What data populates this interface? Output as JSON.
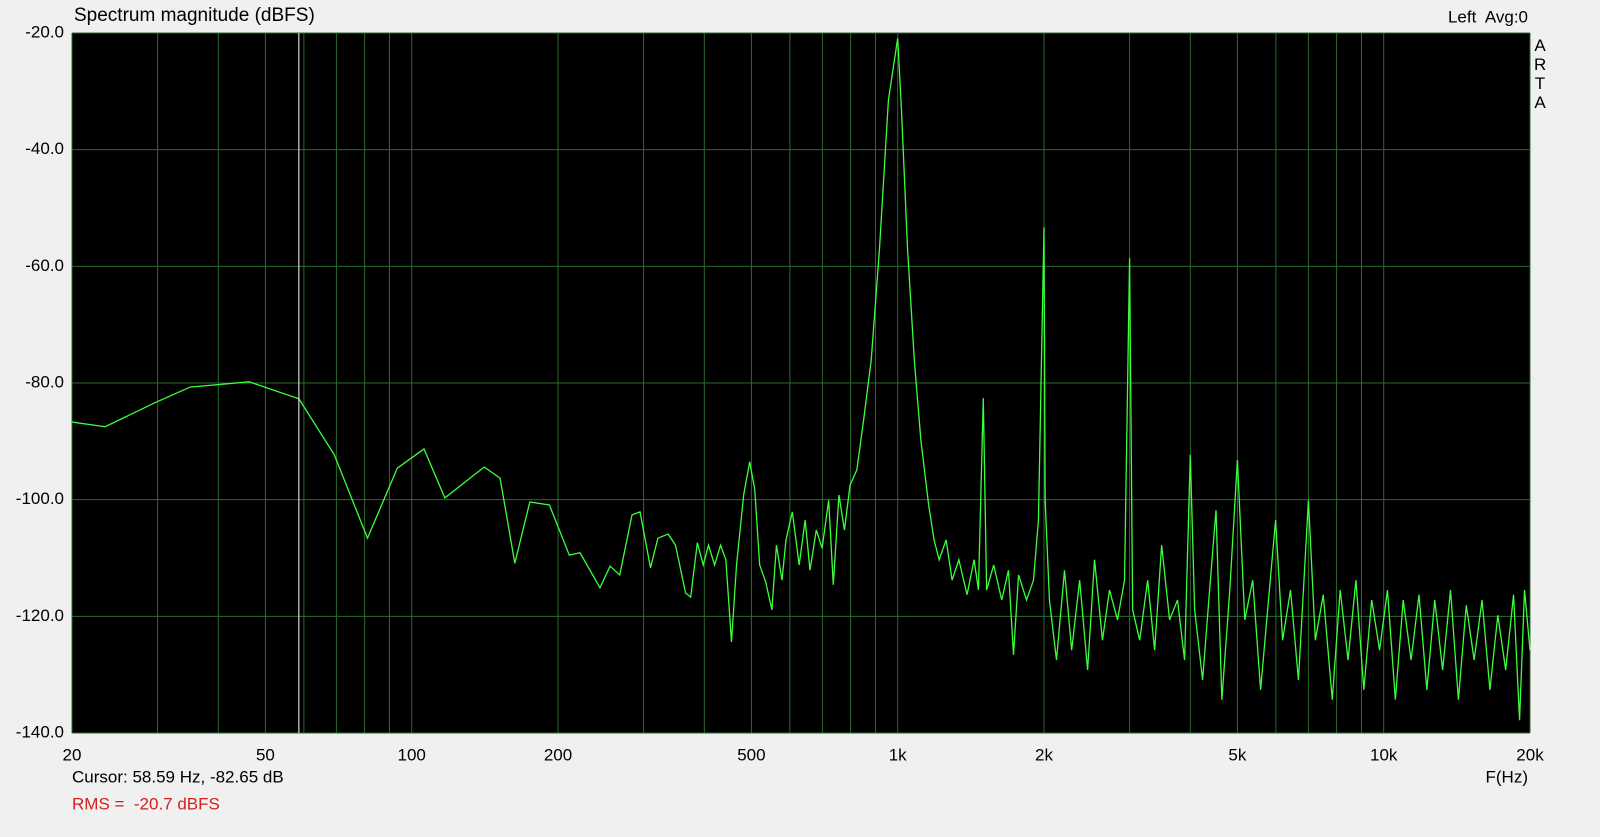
{
  "chart_data": {
    "type": "line",
    "title": "Spectrum magnitude (dBFS)",
    "channel_label": "Left  Avg:0",
    "brand": "ARTA",
    "x_axis_label": "F(Hz)",
    "log_x": true,
    "grid": true,
    "color": "#3cff3c",
    "xlim": [
      20,
      20000
    ],
    "ylim": [
      -140,
      -20
    ],
    "xticks": [
      20,
      50,
      100,
      200,
      500,
      {
        "value": 1000,
        "label": "1k"
      },
      {
        "value": 2000,
        "label": "2k"
      },
      {
        "value": 5000,
        "label": "5k"
      },
      {
        "value": 10000,
        "label": "10k"
      },
      {
        "value": 20000,
        "label": "20k"
      }
    ],
    "minor_xgrid": [
      30,
      40,
      60,
      70,
      80,
      90,
      300,
      400,
      600,
      700,
      800,
      900,
      3000,
      4000,
      6000,
      7000,
      8000,
      9000
    ],
    "yticks": [
      {
        "value": -20,
        "label": "-20.0"
      },
      {
        "value": -40,
        "label": "-40.0"
      },
      {
        "value": -60,
        "label": "-60.0"
      },
      {
        "value": -80,
        "label": "-80.0"
      },
      {
        "value": -100,
        "label": "-100.0"
      },
      {
        "value": -120,
        "label": "-120.0"
      },
      {
        "value": -140,
        "label": "-140.0"
      }
    ],
    "cursor": {
      "x": 58.59,
      "y": -82.65,
      "label": "Cursor: 58.59 Hz, -82.65 dB"
    },
    "rms_label": "RMS =  -20.7 dBFS",
    "x": [
      20,
      23.4,
      29.6,
      35,
      46.3,
      58.6,
      69.3,
      81.1,
      93.4,
      106,
      117,
      141,
      152,
      163,
      175,
      192,
      211,
      222,
      244,
      256,
      268,
      284,
      295,
      310,
      321,
      337,
      349,
      366,
      375,
      387,
      398,
      408,
      420,
      432,
      443,
      455,
      466,
      482,
      496,
      508,
      520,
      535,
      551,
      563,
      578,
      589,
      607,
      627,
      645,
      660,
      680,
      699,
      721,
      737,
      757,
      777,
      798,
      824,
      851,
      882,
      917,
      957,
      1000,
      1018,
      1048,
      1082,
      1116,
      1158,
      1188,
      1217,
      1258,
      1294,
      1336,
      1389,
      1436,
      1466,
      1500,
      1524,
      1576,
      1637,
      1690,
      1731,
      1773,
      1841,
      1903,
      1948,
      2000,
      2011,
      2052,
      2122,
      2204,
      2280,
      2368,
      2459,
      2541,
      2638,
      2728,
      2833,
      2929,
      3000,
      3044,
      3147,
      3268,
      3378,
      3492,
      3626,
      3765,
      3893,
      4000,
      4083,
      4240,
      4383,
      4518,
      4645,
      4823,
      5000,
      5178,
      5376,
      5581,
      5794,
      5992,
      6194,
      6431,
      6677,
      7000,
      7234,
      7510,
      7838,
      8136,
      8446,
      8767,
      9100,
      9447,
      9806,
      10180,
      10567,
      10969,
      11386,
      11820,
      12269,
      12736,
      13221,
      13724,
      14246,
      14788,
      15350,
      15934,
      16540,
      17170,
      17823,
      18501,
      19035,
      19488,
      20000
    ],
    "values": [
      -86.7,
      -87.5,
      -83.4,
      -80.7,
      -79.8,
      -82.7,
      -92.3,
      -106.6,
      -94.6,
      -91.3,
      -99.7,
      -94.4,
      -96.3,
      -110.9,
      -100.4,
      -100.9,
      -109.5,
      -109.1,
      -115.1,
      -111.4,
      -112.9,
      -102.6,
      -102.1,
      -111.7,
      -106.6,
      -105.9,
      -107.8,
      -116.0,
      -116.7,
      -107.4,
      -111.2,
      -107.8,
      -111.2,
      -107.8,
      -110.3,
      -124.4,
      -111.2,
      -99.2,
      -93.5,
      -98.3,
      -111.2,
      -114.1,
      -118.9,
      -107.8,
      -113.8,
      -106.9,
      -102.1,
      -111.2,
      -103.5,
      -112.1,
      -105.2,
      -108.3,
      -100.1,
      -114.6,
      -99.2,
      -105.2,
      -97.5,
      -94.9,
      -86.3,
      -76.1,
      -57.2,
      -31.5,
      -20.9,
      -33.2,
      -57.2,
      -76.1,
      -89.8,
      -100.9,
      -106.9,
      -110.3,
      -106.9,
      -113.8,
      -110.3,
      -116.3,
      -110.3,
      -115.5,
      -82.6,
      -115.5,
      -111.2,
      -117.2,
      -112.1,
      -126.6,
      -112.9,
      -117.2,
      -113.8,
      -103.5,
      -53.3,
      -100.1,
      -117.2,
      -127.5,
      -112.1,
      -125.8,
      -113.8,
      -129.2,
      -110.3,
      -124.1,
      -115.5,
      -120.6,
      -113.8,
      -58.6,
      -118.9,
      -124.1,
      -113.8,
      -125.8,
      -107.8,
      -120.6,
      -117.2,
      -127.5,
      -92.3,
      -118.9,
      -130.9,
      -115.5,
      -101.8,
      -134.3,
      -115.5,
      -93.2,
      -120.6,
      -113.8,
      -132.6,
      -117.2,
      -103.5,
      -124.1,
      -115.5,
      -130.9,
      -100.1,
      -124.1,
      -116.3,
      -134.3,
      -115.5,
      -127.5,
      -113.8,
      -132.6,
      -117.2,
      -125.8,
      -115.5,
      -134.3,
      -117.2,
      -127.5,
      -116.3,
      -132.6,
      -117.2,
      -129.2,
      -115.5,
      -134.3,
      -118.1,
      -127.5,
      -117.2,
      -132.6,
      -119.8,
      -129.2,
      -116.3,
      -137.8,
      -115.5,
      -125.8
    ]
  }
}
